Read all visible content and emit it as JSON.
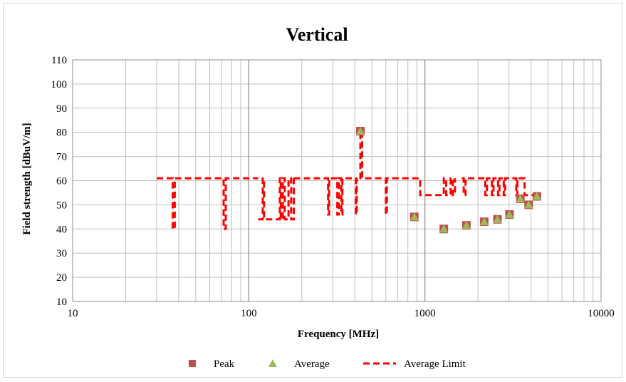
{
  "chart_data": {
    "type": "scatter",
    "title": "Vertical",
    "xlabel": "Frequency [MHz]",
    "ylabel": "Field strength [dBuV/m]",
    "x_scale": "log",
    "xlim": [
      10,
      10000
    ],
    "ylim": [
      10,
      110
    ],
    "x_ticks": [
      "10",
      "100",
      "1000",
      "10000"
    ],
    "y_ticks": [
      "10",
      "20",
      "30",
      "40",
      "50",
      "60",
      "70",
      "80",
      "90",
      "100",
      "110"
    ],
    "grid": true,
    "legend_position": "bottom",
    "series": [
      {
        "name": "Peak",
        "marker": "square",
        "color": "#c0504d",
        "points": [
          [
            430,
            80.5
          ],
          [
            870,
            45
          ],
          [
            1280,
            40
          ],
          [
            1720,
            41.5
          ],
          [
            2170,
            43
          ],
          [
            2580,
            44
          ],
          [
            3020,
            46
          ],
          [
            3480,
            52.5
          ],
          [
            3880,
            50
          ],
          [
            4320,
            53.5
          ]
        ]
      },
      {
        "name": "Average",
        "marker": "triangle",
        "color": "#9bbb59",
        "points": [
          [
            430,
            80.5
          ],
          [
            870,
            45
          ],
          [
            1280,
            40
          ],
          [
            1720,
            41.5
          ],
          [
            2170,
            43
          ],
          [
            2580,
            44
          ],
          [
            3020,
            46
          ],
          [
            3480,
            52.5
          ],
          [
            3880,
            50
          ],
          [
            4320,
            53.5
          ]
        ]
      },
      {
        "name": "Average Limit",
        "style": "dashed",
        "color": "#ff0000",
        "segments": [
          [
            [
              30,
              61
            ],
            [
              37,
              61
            ],
            [
              37,
              40
            ],
            [
              38,
              40
            ],
            [
              38,
              61
            ],
            [
              72,
              61
            ],
            [
              72,
              40
            ],
            [
              74,
              40
            ],
            [
              74,
              61
            ],
            [
              113,
              61
            ]
          ],
          [
            [
              113,
              44
            ],
            [
              120,
              44
            ],
            [
              120,
              61
            ],
            [
              122,
              61
            ],
            [
              122,
              44
            ],
            [
              150,
              44
            ],
            [
              150,
              61
            ],
            [
              152,
              61
            ],
            [
              152,
              44
            ],
            [
              156,
              44
            ],
            [
              156,
              61
            ],
            [
              160,
              61
            ],
            [
              160,
              44
            ],
            [
              168,
              44
            ],
            [
              168,
              61
            ],
            [
              174,
              61
            ],
            [
              174,
              44
            ],
            [
              180,
              44
            ],
            [
              180,
              61
            ]
          ],
          [
            [
              180,
              61
            ],
            [
              282,
              61
            ],
            [
              282,
              46
            ],
            [
              286,
              46
            ],
            [
              286,
              61
            ],
            [
              318,
              61
            ],
            [
              318,
              46
            ],
            [
              325,
              46
            ],
            [
              325,
              61
            ],
            [
              335,
              61
            ],
            [
              335,
              46
            ],
            [
              340,
              46
            ],
            [
              340,
              61
            ],
            [
              405,
              61
            ],
            [
              405,
              46
            ],
            [
              410,
              46
            ],
            [
              410,
              61
            ]
          ],
          [
            [
              425,
              61
            ],
            [
              430,
              61
            ],
            [
              430,
              80.5
            ],
            [
              440,
              80.5
            ],
            [
              440,
              61
            ],
            [
              600,
              61
            ],
            [
              600,
              46
            ],
            [
              608,
              46
            ],
            [
              608,
              61
            ],
            [
              940,
              61
            ],
            [
              940,
              54
            ],
            [
              1280,
              54
            ],
            [
              1280,
              61
            ],
            [
              1320,
              61
            ],
            [
              1320,
              54
            ],
            [
              1400,
              54
            ],
            [
              1400,
              61
            ],
            [
              1440,
              61
            ],
            [
              1440,
              54
            ],
            [
              1480,
              54
            ],
            [
              1480,
              61
            ]
          ],
          [
            [
              1620,
              61
            ],
            [
              1660,
              61
            ],
            [
              1660,
              54
            ],
            [
              1700,
              54
            ],
            [
              1700,
              61
            ],
            [
              2200,
              61
            ],
            [
              2200,
              54
            ],
            [
              2250,
              54
            ],
            [
              2250,
              61
            ],
            [
              2400,
              61
            ],
            [
              2400,
              54
            ],
            [
              2450,
              54
            ],
            [
              2450,
              61
            ],
            [
              2600,
              61
            ],
            [
              2600,
              54
            ],
            [
              2650,
              54
            ],
            [
              2650,
              61
            ],
            [
              2800,
              61
            ],
            [
              2800,
              54
            ],
            [
              2850,
              54
            ],
            [
              2850,
              61
            ],
            [
              3300,
              61
            ],
            [
              3300,
              54
            ],
            [
              3350,
              54
            ],
            [
              3350,
              61
            ],
            [
              3680,
              61
            ],
            [
              3680,
              54
            ],
            [
              4300,
              54
            ]
          ]
        ]
      }
    ]
  }
}
